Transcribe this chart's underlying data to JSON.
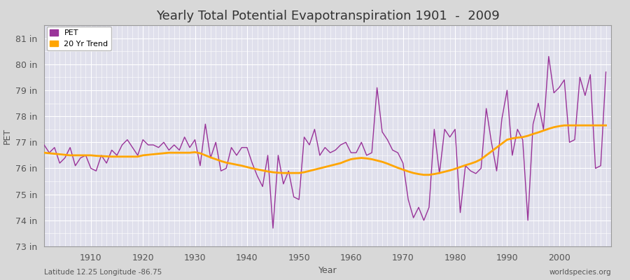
{
  "title": "Yearly Total Potential Evapotranspiration 1901  -  2009",
  "xlabel": "Year",
  "ylabel": "PET",
  "bottom_left_label": "Latitude 12.25 Longitude -86.75",
  "bottom_right_label": "worldspecies.org",
  "years": [
    1901,
    1902,
    1903,
    1904,
    1905,
    1906,
    1907,
    1908,
    1909,
    1910,
    1911,
    1912,
    1913,
    1914,
    1915,
    1916,
    1917,
    1918,
    1919,
    1920,
    1921,
    1922,
    1923,
    1924,
    1925,
    1926,
    1927,
    1928,
    1929,
    1930,
    1931,
    1932,
    1933,
    1934,
    1935,
    1936,
    1937,
    1938,
    1939,
    1940,
    1941,
    1942,
    1943,
    1944,
    1945,
    1946,
    1947,
    1948,
    1949,
    1950,
    1951,
    1952,
    1953,
    1954,
    1955,
    1956,
    1957,
    1958,
    1959,
    1960,
    1961,
    1962,
    1963,
    1964,
    1965,
    1966,
    1967,
    1968,
    1969,
    1970,
    1971,
    1972,
    1973,
    1974,
    1975,
    1976,
    1977,
    1978,
    1979,
    1980,
    1981,
    1982,
    1983,
    1984,
    1985,
    1986,
    1987,
    1988,
    1989,
    1990,
    1991,
    1992,
    1993,
    1994,
    1995,
    1996,
    1997,
    1998,
    1999,
    2000,
    2001,
    2002,
    2003,
    2004,
    2005,
    2006,
    2007,
    2008,
    2009
  ],
  "pet": [
    76.9,
    76.6,
    76.8,
    76.2,
    76.4,
    76.8,
    76.1,
    76.4,
    76.5,
    76.0,
    75.9,
    76.5,
    76.2,
    76.7,
    76.5,
    76.9,
    77.1,
    76.8,
    76.5,
    77.1,
    76.9,
    76.9,
    76.8,
    77.0,
    76.7,
    76.9,
    76.7,
    77.2,
    76.8,
    77.1,
    76.1,
    77.7,
    76.4,
    77.0,
    75.9,
    76.0,
    76.8,
    76.5,
    76.8,
    76.8,
    76.2,
    75.7,
    75.3,
    76.5,
    73.7,
    76.5,
    75.4,
    75.9,
    74.9,
    74.8,
    77.2,
    76.9,
    77.5,
    76.5,
    76.8,
    76.6,
    76.7,
    76.9,
    77.0,
    76.6,
    76.6,
    77.0,
    76.5,
    76.6,
    79.1,
    77.4,
    77.1,
    76.7,
    76.6,
    76.2,
    74.8,
    74.1,
    74.5,
    74.0,
    74.5,
    77.5,
    75.8,
    77.5,
    77.2,
    77.5,
    74.3,
    76.1,
    75.9,
    75.8,
    76.0,
    78.3,
    77.0,
    75.9,
    77.9,
    79.0,
    76.5,
    77.5,
    77.1,
    74.0,
    77.7,
    78.5,
    77.5,
    80.3,
    78.9,
    79.1,
    79.4,
    77.0,
    77.1,
    79.5,
    78.8,
    79.6,
    76.0,
    76.1,
    79.7
  ],
  "trend": [
    76.6,
    76.58,
    76.56,
    76.54,
    76.52,
    76.5,
    76.5,
    76.5,
    76.5,
    76.5,
    76.48,
    76.47,
    76.46,
    76.45,
    76.45,
    76.45,
    76.45,
    76.45,
    76.45,
    76.5,
    76.52,
    76.54,
    76.56,
    76.58,
    76.6,
    76.6,
    76.6,
    76.6,
    76.6,
    76.62,
    76.58,
    76.5,
    76.42,
    76.35,
    76.28,
    76.22,
    76.18,
    76.14,
    76.1,
    76.05,
    76.0,
    75.96,
    75.92,
    75.88,
    75.85,
    75.83,
    75.82,
    75.82,
    75.82,
    75.82,
    75.85,
    75.9,
    75.95,
    76.0,
    76.05,
    76.1,
    76.15,
    76.2,
    76.28,
    76.35,
    76.38,
    76.4,
    76.38,
    76.35,
    76.3,
    76.25,
    76.18,
    76.1,
    76.02,
    75.95,
    75.88,
    75.82,
    75.78,
    75.75,
    75.75,
    75.78,
    75.82,
    75.87,
    75.92,
    75.98,
    76.05,
    76.12,
    76.18,
    76.25,
    76.35,
    76.5,
    76.65,
    76.8,
    76.95,
    77.1,
    77.15,
    77.18,
    77.2,
    77.25,
    77.32,
    77.38,
    77.45,
    77.52,
    77.58,
    77.62,
    77.65,
    77.65,
    77.65,
    77.65,
    77.65,
    77.65,
    77.65,
    77.65,
    77.65
  ],
  "pet_color": "#993399",
  "trend_color": "#FFA500",
  "bg_color": "#d8d8d8",
  "plot_bg_color": "#e0e0ec",
  "grid_color": "#ffffff",
  "ylim": [
    73.0,
    81.5
  ],
  "yticks": [
    73,
    74,
    75,
    76,
    77,
    78,
    79,
    80,
    81
  ],
  "ytick_labels": [
    "73 in",
    "74 in",
    "75 in",
    "76 in",
    "77 in",
    "78 in",
    "79 in",
    "80 in",
    "81 in"
  ],
  "xtick_years": [
    1910,
    1920,
    1930,
    1940,
    1950,
    1960,
    1970,
    1980,
    1990,
    2000
  ],
  "xlim": [
    1901,
    2010
  ],
  "legend_pet_label": "PET",
  "legend_trend_label": "20 Yr Trend",
  "title_fontsize": 13,
  "axis_label_fontsize": 9,
  "tick_fontsize": 9,
  "legend_fontsize": 8
}
